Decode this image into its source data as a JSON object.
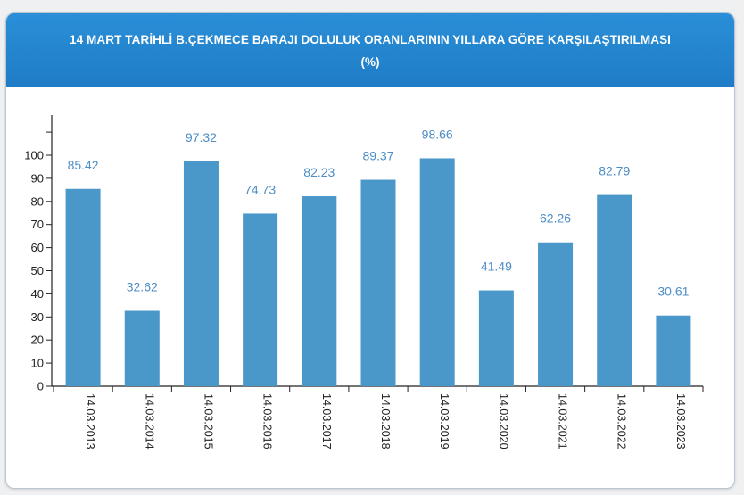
{
  "header": {
    "title": "14 MART TARİHLİ B.ÇEKMECE BARAJI DOLULUK ORANLARININ YILLARA GÖRE KARŞILAŞTIRILMASI",
    "subtitle": "(%)"
  },
  "colors": {
    "header_bg": "#1f7cc6",
    "bar": "#4a98c9",
    "data_label": "#4d8dc6"
  },
  "chart_data": {
    "type": "bar",
    "categories": [
      "14.03.2013",
      "14.03.2014",
      "14.03.2015",
      "14.03.2016",
      "14.03.2017",
      "14.03.2018",
      "14.03.2019",
      "14.03.2020",
      "14.03.2021",
      "14.03.2022",
      "14.03.2023"
    ],
    "values": [
      85.42,
      32.62,
      97.32,
      74.73,
      82.23,
      89.37,
      98.66,
      41.49,
      62.26,
      82.79,
      30.61
    ],
    "value_labels": [
      "85.42",
      "32.62",
      "97.32",
      "74.73",
      "82.23",
      "89.37",
      "98.66",
      "41.49",
      "62.26",
      "82.79",
      "30.61"
    ],
    "yticks": [
      "0",
      "10",
      "20",
      "30",
      "40",
      "50",
      "60",
      "70",
      "80",
      "90",
      "100"
    ],
    "ylim": [
      0,
      100
    ],
    "grid": false
  }
}
